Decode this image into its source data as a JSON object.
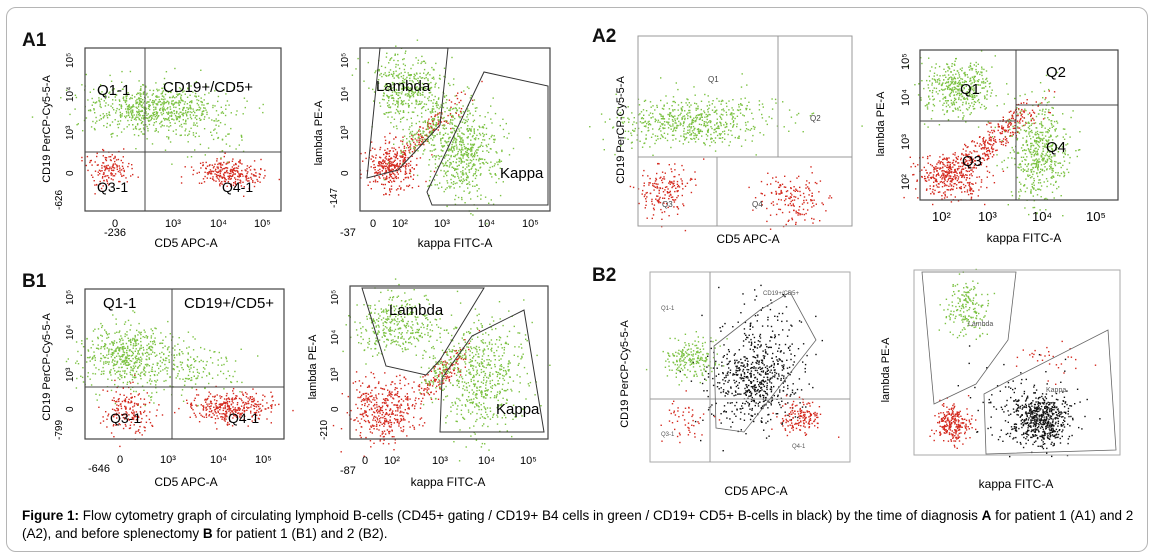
{
  "figure": {
    "panel_labels": {
      "A1": "A1",
      "A2": "A2",
      "B1": "B1",
      "B2": "B2"
    },
    "caption": {
      "lead": "Figure 1:",
      "text_1": " Flow cytometry graph of circulating lymphoid B-cells (CD45+ gating / CD19+ B4 cells in green / CD19+ CD5+ B-cells in black) by the time of diagnosis ",
      "bold_a": "A",
      "text_2": " for patient 1 (A1) and 2 (A2), and before splenectomy ",
      "bold_b": "B",
      "text_3": " for patient 1 (B1) and 2 (B2)."
    }
  },
  "colors": {
    "green": "#7cc243",
    "red": "#d42a1f",
    "black": "#111111",
    "line": "#555555"
  },
  "plots": [
    {
      "id": "a1-cd5",
      "panel": "A1",
      "type": "quadrant",
      "xlabel": "CD5 APC-A",
      "ylabel": "CD19 PerCP-Cy5-5-A",
      "xticks": [
        "-236",
        "0",
        "10³",
        "10⁴",
        "10⁵"
      ],
      "yticks": [
        "-626",
        "0",
        "10³",
        "10⁴",
        "10⁵"
      ],
      "regions": [
        "Q1-1",
        "CD19+/CD5+",
        "Q3-1",
        "Q4-1"
      ]
    },
    {
      "id": "a1-kappa",
      "panel": "A1",
      "type": "gates",
      "xlabel": "kappa FITC-A",
      "ylabel": "lambda PE-A",
      "xticks": [
        "-37",
        "0",
        "10²",
        "10³",
        "10⁴",
        "10⁵"
      ],
      "yticks": [
        "-147",
        "0",
        "10³",
        "10⁴",
        "10⁵"
      ],
      "regions": [
        "Lambda",
        "Kappa"
      ]
    },
    {
      "id": "a2-cd5",
      "panel": "A2",
      "type": "quadrant",
      "xlabel": "CD5 APC-A",
      "ylabel": "CD19 PerCP-Cy5-5-A",
      "xticks": [],
      "yticks": [],
      "regions": [
        "Q1",
        "Q2",
        "Q3",
        "Q4"
      ]
    },
    {
      "id": "a2-kappa",
      "panel": "A2",
      "type": "quadrant",
      "xlabel": "kappa FITC-A",
      "ylabel": "lambda PE-A",
      "xticks": [
        "10²",
        "10³",
        "10⁴",
        "10⁵"
      ],
      "yticks": [
        "10²",
        "10³",
        "10⁴",
        "10⁵"
      ],
      "regions": [
        "Q1",
        "Q2",
        "Q3",
        "Q4"
      ]
    },
    {
      "id": "b1-cd5",
      "panel": "B1",
      "type": "quadrant",
      "xlabel": "CD5 APC-A",
      "ylabel": "CD19 PerCP-Cy5-5-A",
      "xticks": [
        "-646",
        "0",
        "10³",
        "10⁴",
        "10⁵"
      ],
      "yticks": [
        "-799",
        "0",
        "10³",
        "10⁴",
        "10⁵"
      ],
      "regions": [
        "Q1-1",
        "CD19+/CD5+",
        "Q3-1",
        "Q4-1"
      ]
    },
    {
      "id": "b1-kappa",
      "panel": "B1",
      "type": "gates",
      "xlabel": "kappa FITC-A",
      "ylabel": "lambda PE-A",
      "xticks": [
        "-87",
        "0",
        "10²",
        "10³",
        "10⁴",
        "10⁵"
      ],
      "yticks": [
        "-210",
        "0",
        "10³",
        "10⁴",
        "10⁵"
      ],
      "regions": [
        "Lambda",
        "Kappa"
      ]
    },
    {
      "id": "b2-cd5",
      "panel": "B2",
      "type": "quadrant",
      "xlabel": "CD5 APC-A",
      "ylabel": "CD19 PerCP-Cy5-5-A",
      "xticks": [],
      "yticks": [],
      "regions": [
        "Q1-1",
        "CD19+/CD5+",
        "Q3-1",
        "Q4-1"
      ]
    },
    {
      "id": "b2-kappa",
      "panel": "B2",
      "type": "gates",
      "xlabel": "kappa FITC-A",
      "ylabel": "lambda PE-A",
      "xticks": [],
      "yticks": [],
      "regions": [
        "Lambda",
        "Kappa"
      ]
    }
  ]
}
